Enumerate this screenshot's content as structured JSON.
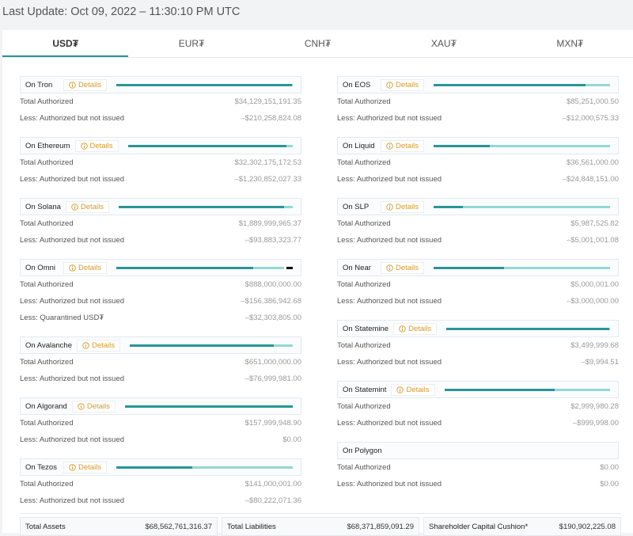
{
  "header": {
    "last_update": "Last Update: Oct 09, 2022 – 11:30:10 PM UTC"
  },
  "tabs": [
    "USD₮",
    "EUR₮",
    "CNH₮",
    "XAU₮",
    "MXN₮"
  ],
  "columns": [
    [
      {
        "name": "On Tron",
        "details": "Details",
        "rows": [
          {
            "label": "Total Authorized",
            "value": "$34,129,151,191.35"
          },
          {
            "label": "Less: Authorized but not issued",
            "value": "–$210,258,824.08"
          }
        ]
      },
      {
        "name": "On Ethereum",
        "details": "Details",
        "rows": [
          {
            "label": "Total Authorized",
            "value": "$32,302,175,172.53"
          },
          {
            "label": "Less: Authorized but not issued",
            "value": "–$1,230,852,027.33"
          }
        ]
      },
      {
        "name": "On Solana",
        "details": "Details",
        "rows": [
          {
            "label": "Total Authorized",
            "value": "$1,889,999,965.37"
          },
          {
            "label": "Less: Authorized but not issued",
            "value": "–$93,883,323.77"
          }
        ]
      },
      {
        "name": "On Omni",
        "details": "Details",
        "rows": [
          {
            "label": "Total Authorized",
            "value": "$888,000,000.00"
          },
          {
            "label": "Less: Authorized but not issued",
            "value": "–$156,386,942.68"
          },
          {
            "label": "Less: Quarantined USD₮",
            "value": "–$32,303,805.00"
          }
        ]
      },
      {
        "name": "On Avalanche",
        "details": "Details",
        "rows": [
          {
            "label": "Total Authorized",
            "value": "$651,000,000.00"
          },
          {
            "label": "Less: Authorized but not issued",
            "value": "–$76,999,981.00"
          }
        ]
      },
      {
        "name": "On Algorand",
        "details": "Details",
        "rows": [
          {
            "label": "Total Authorized",
            "value": "$157,999,948.90"
          },
          {
            "label": "Less: Authorized but not issued",
            "value": "$0.00"
          }
        ]
      },
      {
        "name": "On Tezos",
        "details": "Details",
        "rows": [
          {
            "label": "Total Authorized",
            "value": "$141,000,001.00"
          },
          {
            "label": "Less: Authorized but not issued",
            "value": "–$80,222,071.36"
          }
        ]
      }
    ],
    [
      {
        "name": "On EOS",
        "details": "Details",
        "rows": [
          {
            "label": "Total Authorized",
            "value": "$85,251,000.50"
          },
          {
            "label": "Less: Authorized but not issued",
            "value": "–$12,000,575.33"
          }
        ]
      },
      {
        "name": "On Liquid",
        "details": "Details",
        "rows": [
          {
            "label": "Total Authorized",
            "value": "$36,561,000.00"
          },
          {
            "label": "Less: Authorized but not issued",
            "value": "–$24,848,151.00"
          }
        ]
      },
      {
        "name": "On SLP",
        "details": "Details",
        "rows": [
          {
            "label": "Total Authorized",
            "value": "$5,987,525.82"
          },
          {
            "label": "Less: Authorized but not issued",
            "value": "–$5,001,001.08"
          }
        ]
      },
      {
        "name": "On Near",
        "details": "Details",
        "rows": [
          {
            "label": "Total Authorized",
            "value": "$5,000,001.00"
          },
          {
            "label": "Less: Authorized but not issued",
            "value": "–$3,000,000.00"
          }
        ]
      },
      {
        "name": "On Statemine",
        "details": "Details",
        "rows": [
          {
            "label": "Total Authorized",
            "value": "$3,499,999.68"
          },
          {
            "label": "Less: Authorized but not issued",
            "value": "–$9,994.51"
          }
        ]
      },
      {
        "name": "On Statemint",
        "details": "Details",
        "rows": [
          {
            "label": "Total Authorized",
            "value": "$2,999,980.28"
          },
          {
            "label": "Less: Authorized but not issued",
            "value": "–$999,998.00"
          }
        ]
      },
      {
        "name": "On Polygon",
        "rows": [
          {
            "label": "Total Authorized",
            "value": "$0.00"
          },
          {
            "label": "Less: Authorized but not issued",
            "value": "$0.00"
          }
        ]
      }
    ]
  ],
  "summary": [
    {
      "label": "Total Assets",
      "value": "$68,562,761,316.37"
    },
    {
      "label": "Total Liabilities",
      "value": "$68,371,859,091.29"
    },
    {
      "label": "Shareholder Capital Cushion*",
      "value": "$190,902,225.08"
    }
  ]
}
